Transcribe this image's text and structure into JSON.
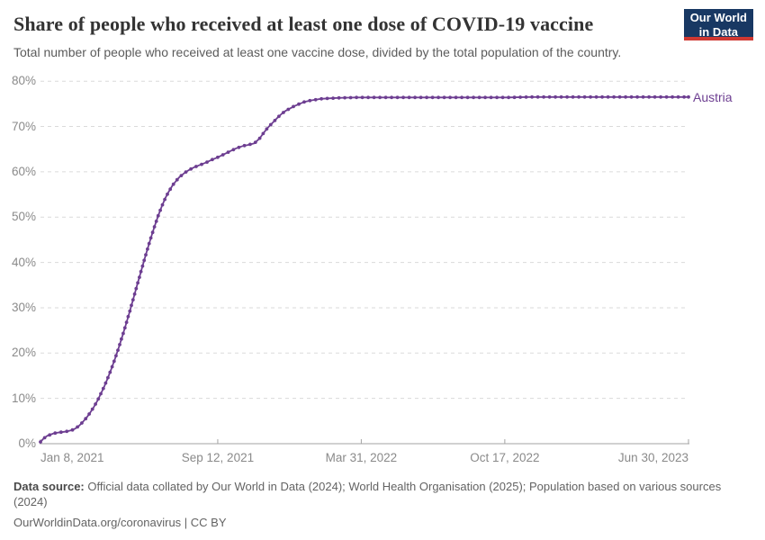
{
  "header": {
    "title": "Share of people who received at least one dose of COVID-19 vaccine",
    "subtitle": "Total number of people who received at least one vaccine dose, divided by the total population of the country.",
    "logo": {
      "line1": "Our World",
      "line2": "in Data",
      "bg_color": "#183863",
      "accent_color": "#cf3832"
    }
  },
  "chart_data": {
    "type": "line",
    "title": "Share of people who received at least one dose of COVID-19 vaccine",
    "xlabel": "",
    "ylabel": "",
    "grid": "horizontal-dashed",
    "legend_position": "end-of-line",
    "ylim": [
      0,
      80
    ],
    "x_range": [
      "2021-01-08",
      "2023-06-30"
    ],
    "y_ticks": [
      {
        "value": 0,
        "label": "0%"
      },
      {
        "value": 10,
        "label": "10%"
      },
      {
        "value": 20,
        "label": "20%"
      },
      {
        "value": 30,
        "label": "30%"
      },
      {
        "value": 40,
        "label": "40%"
      },
      {
        "value": 50,
        "label": "50%"
      },
      {
        "value": 60,
        "label": "60%"
      },
      {
        "value": 70,
        "label": "70%"
      },
      {
        "value": 80,
        "label": "80%"
      }
    ],
    "x_ticks": [
      {
        "date": "2021-01-08",
        "label": "Jan 8, 2021",
        "align": "left"
      },
      {
        "date": "2021-09-12",
        "label": "Sep 12, 2021",
        "align": "center"
      },
      {
        "date": "2022-03-31",
        "label": "Mar 31, 2022",
        "align": "center"
      },
      {
        "date": "2022-10-17",
        "label": "Oct 17, 2022",
        "align": "center"
      },
      {
        "date": "2023-06-30",
        "label": "Jun 30, 2023",
        "align": "right"
      }
    ],
    "series": [
      {
        "name": "Austria",
        "color": "#6d3e91",
        "points": [
          [
            "2021-01-08",
            0.4
          ],
          [
            "2021-01-12",
            1.1
          ],
          [
            "2021-01-17",
            1.7
          ],
          [
            "2021-01-22",
            2.0
          ],
          [
            "2021-01-27",
            2.3
          ],
          [
            "2021-02-01",
            2.45
          ],
          [
            "2021-02-06",
            2.55
          ],
          [
            "2021-02-11",
            2.65
          ],
          [
            "2021-02-16",
            2.8
          ],
          [
            "2021-02-21",
            3.0
          ],
          [
            "2021-02-26",
            3.4
          ],
          [
            "2021-03-03",
            4.0
          ],
          [
            "2021-03-08",
            4.8
          ],
          [
            "2021-03-13",
            5.7
          ],
          [
            "2021-03-18",
            6.8
          ],
          [
            "2021-03-23",
            8.0
          ],
          [
            "2021-03-28",
            9.4
          ],
          [
            "2021-04-02",
            11.0
          ],
          [
            "2021-04-07",
            12.7
          ],
          [
            "2021-04-12",
            14.6
          ],
          [
            "2021-04-17",
            16.6
          ],
          [
            "2021-04-22",
            18.8
          ],
          [
            "2021-04-27",
            21.2
          ],
          [
            "2021-05-02",
            23.7
          ],
          [
            "2021-05-07",
            26.3
          ],
          [
            "2021-05-12",
            29.0
          ],
          [
            "2021-05-17",
            31.8
          ],
          [
            "2021-05-22",
            34.6
          ],
          [
            "2021-05-27",
            37.4
          ],
          [
            "2021-06-01",
            40.2
          ],
          [
            "2021-06-06",
            42.9
          ],
          [
            "2021-06-11",
            45.5
          ],
          [
            "2021-06-16",
            48.0
          ],
          [
            "2021-06-21",
            50.3
          ],
          [
            "2021-06-26",
            52.4
          ],
          [
            "2021-07-01",
            54.2
          ],
          [
            "2021-07-06",
            55.7
          ],
          [
            "2021-07-11",
            57.0
          ],
          [
            "2021-07-16",
            58.0
          ],
          [
            "2021-07-21",
            58.9
          ],
          [
            "2021-07-28",
            59.8
          ],
          [
            "2021-08-03",
            60.4
          ],
          [
            "2021-08-10",
            61.0
          ],
          [
            "2021-08-18",
            61.5
          ],
          [
            "2021-08-26",
            62.0
          ],
          [
            "2021-09-03",
            62.6
          ],
          [
            "2021-09-12",
            63.2
          ],
          [
            "2021-09-21",
            63.9
          ],
          [
            "2021-09-30",
            64.6
          ],
          [
            "2021-10-08",
            65.2
          ],
          [
            "2021-10-17",
            65.7
          ],
          [
            "2021-10-26",
            66.0
          ],
          [
            "2021-11-02",
            66.3
          ],
          [
            "2021-11-09",
            67.3
          ],
          [
            "2021-11-15",
            68.6
          ],
          [
            "2021-11-21",
            69.8
          ],
          [
            "2021-11-28",
            70.9
          ],
          [
            "2021-12-04",
            71.9
          ],
          [
            "2021-12-10",
            72.8
          ],
          [
            "2021-12-16",
            73.5
          ],
          [
            "2021-12-23",
            74.1
          ],
          [
            "2021-12-29",
            74.6
          ],
          [
            "2022-01-04",
            75.0
          ],
          [
            "2022-01-10",
            75.4
          ],
          [
            "2022-01-18",
            75.7
          ],
          [
            "2022-01-26",
            75.9
          ],
          [
            "2022-02-03",
            76.1
          ],
          [
            "2022-02-13",
            76.2
          ],
          [
            "2022-02-26",
            76.3
          ],
          [
            "2022-03-24",
            76.4
          ],
          [
            "2022-04-23",
            76.4
          ],
          [
            "2022-05-23",
            76.4
          ],
          [
            "2022-06-22",
            76.4
          ],
          [
            "2022-07-22",
            76.4
          ],
          [
            "2022-08-21",
            76.4
          ],
          [
            "2022-09-20",
            76.4
          ],
          [
            "2022-10-20",
            76.4
          ],
          [
            "2022-11-19",
            76.5
          ],
          [
            "2022-12-19",
            76.5
          ],
          [
            "2023-01-18",
            76.5
          ],
          [
            "2023-02-17",
            76.5
          ],
          [
            "2023-03-19",
            76.5
          ],
          [
            "2023-04-18",
            76.5
          ],
          [
            "2023-05-18",
            76.5
          ],
          [
            "2023-06-30",
            76.5
          ]
        ]
      }
    ],
    "style": {
      "grid_color": "#dadada",
      "axis_color": "#a3a3a3",
      "tick_label_color": "#8a8a8a"
    }
  },
  "footer": {
    "source_label": "Data source:",
    "source_text": "Official data collated by Our World in Data (2024); World Health Organisation (2025); Population based on various sources",
    "source_text_2": "(2024)",
    "note": "OurWorldinData.org/coronavirus | CC BY"
  }
}
